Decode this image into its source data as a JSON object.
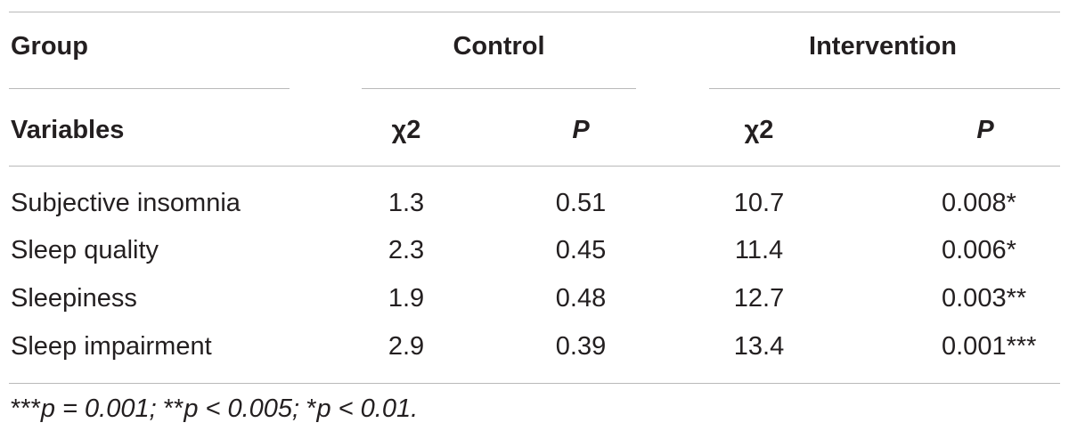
{
  "header": {
    "group_label": "Group",
    "control_label": "Control",
    "intervention_label": "Intervention",
    "variables_label": "Variables",
    "control_chi": "χ2",
    "control_p": "P",
    "intervention_chi": "χ2",
    "intervention_p": "P"
  },
  "rows": [
    {
      "variable": "Subjective insomnia",
      "control_chi": "1.3",
      "control_p": "0.51",
      "intervention_chi": "10.7",
      "intervention_p": "0.008*"
    },
    {
      "variable": "Sleep quality",
      "control_chi": "2.3",
      "control_p": "0.45",
      "intervention_chi": "11.4",
      "intervention_p": "0.006*"
    },
    {
      "variable": "Sleepiness",
      "control_chi": "1.9",
      "control_p": "0.48",
      "intervention_chi": "12.7",
      "intervention_p": "0.003**"
    },
    {
      "variable": "Sleep impairment",
      "control_chi": "2.9",
      "control_p": "0.39",
      "intervention_chi": "13.4",
      "intervention_p": "0.001***"
    }
  ],
  "footnote": {
    "stars3": "***",
    "part1": "p = 0.001; ",
    "stars2": "**",
    "part2": "p < 0.005; ",
    "stars1": "*",
    "part3": "p < 0.01."
  }
}
